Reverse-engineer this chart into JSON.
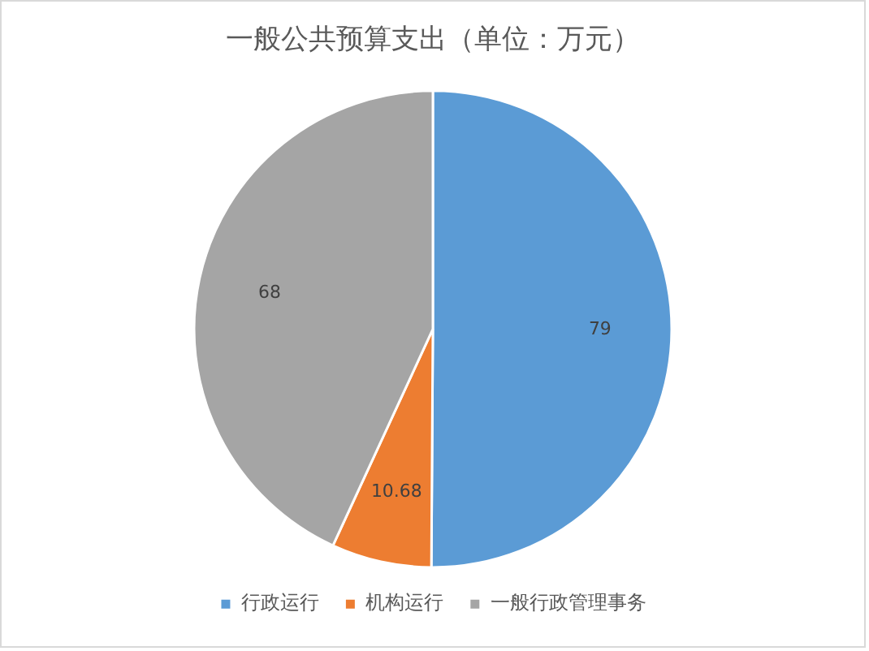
{
  "chart_data": {
    "type": "pie",
    "title": "一般公共预算支出（单位：万元）",
    "categories": [
      "行政运行",
      "机构运行",
      "一般行政管理事务"
    ],
    "values": [
      79,
      10.68,
      68
    ],
    "colors": [
      "#5b9bd5",
      "#ed7d31",
      "#a5a5a5"
    ],
    "data_labels": true,
    "legend": "bottom"
  }
}
